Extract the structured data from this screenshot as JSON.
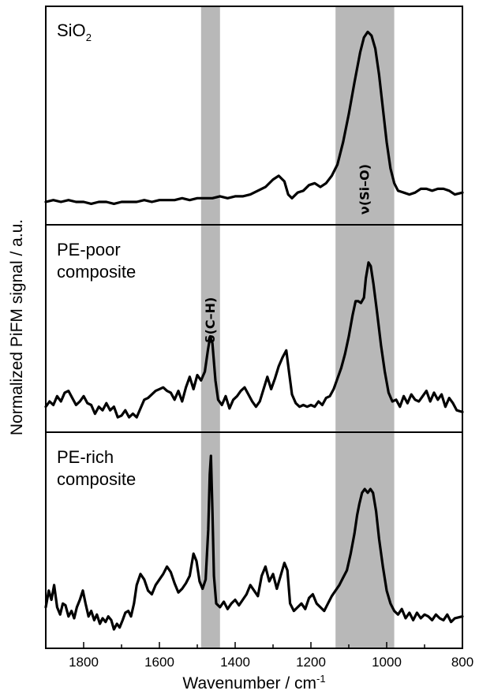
{
  "chart_data": {
    "type": "line",
    "xlabel": "Wavenumber / cm",
    "xlabel_sup": "-1",
    "ylabel": "Normalized PiFM signal / a.u.",
    "xlim": [
      1900,
      800
    ],
    "x_reversed": true,
    "x_ticks": [
      1800,
      1600,
      1400,
      1200,
      1000,
      800
    ],
    "y_ticks_shown": false,
    "bands": [
      {
        "label": "δ(C–H)",
        "from": 1490,
        "to": 1440,
        "color": "#b8b8b8"
      },
      {
        "label": "ν(Si–O)",
        "from": 1135,
        "to": 980,
        "color": "#b8b8b8"
      }
    ],
    "series": [
      {
        "name": "SiO",
        "name_sub": "2",
        "points": [
          [
            1900,
            0.08
          ],
          [
            1880,
            0.09
          ],
          [
            1860,
            0.08
          ],
          [
            1840,
            0.09
          ],
          [
            1820,
            0.08
          ],
          [
            1800,
            0.08
          ],
          [
            1780,
            0.07
          ],
          [
            1760,
            0.08
          ],
          [
            1740,
            0.08
          ],
          [
            1720,
            0.07
          ],
          [
            1700,
            0.08
          ],
          [
            1680,
            0.08
          ],
          [
            1660,
            0.08
          ],
          [
            1640,
            0.09
          ],
          [
            1620,
            0.08
          ],
          [
            1600,
            0.09
          ],
          [
            1580,
            0.09
          ],
          [
            1560,
            0.09
          ],
          [
            1540,
            0.1
          ],
          [
            1520,
            0.09
          ],
          [
            1500,
            0.1
          ],
          [
            1480,
            0.1
          ],
          [
            1460,
            0.1
          ],
          [
            1440,
            0.11
          ],
          [
            1420,
            0.1
          ],
          [
            1400,
            0.11
          ],
          [
            1380,
            0.11
          ],
          [
            1360,
            0.12
          ],
          [
            1340,
            0.14
          ],
          [
            1320,
            0.16
          ],
          [
            1300,
            0.2
          ],
          [
            1285,
            0.22
          ],
          [
            1270,
            0.19
          ],
          [
            1260,
            0.12
          ],
          [
            1250,
            0.1
          ],
          [
            1235,
            0.13
          ],
          [
            1220,
            0.14
          ],
          [
            1205,
            0.17
          ],
          [
            1190,
            0.18
          ],
          [
            1175,
            0.16
          ],
          [
            1160,
            0.18
          ],
          [
            1145,
            0.22
          ],
          [
            1130,
            0.28
          ],
          [
            1115,
            0.4
          ],
          [
            1100,
            0.55
          ],
          [
            1085,
            0.72
          ],
          [
            1070,
            0.88
          ],
          [
            1060,
            0.96
          ],
          [
            1050,
            0.99
          ],
          [
            1040,
            0.97
          ],
          [
            1030,
            0.9
          ],
          [
            1020,
            0.76
          ],
          [
            1010,
            0.58
          ],
          [
            1000,
            0.4
          ],
          [
            990,
            0.26
          ],
          [
            980,
            0.18
          ],
          [
            970,
            0.14
          ],
          [
            955,
            0.13
          ],
          [
            940,
            0.12
          ],
          [
            925,
            0.13
          ],
          [
            910,
            0.15
          ],
          [
            895,
            0.15
          ],
          [
            880,
            0.14
          ],
          [
            865,
            0.15
          ],
          [
            850,
            0.15
          ],
          [
            835,
            0.14
          ],
          [
            820,
            0.12
          ],
          [
            800,
            0.13
          ]
        ]
      },
      {
        "name": "PE-poor composite",
        "points": [
          [
            1900,
            0.1
          ],
          [
            1890,
            0.13
          ],
          [
            1880,
            0.11
          ],
          [
            1870,
            0.16
          ],
          [
            1860,
            0.13
          ],
          [
            1850,
            0.18
          ],
          [
            1840,
            0.19
          ],
          [
            1830,
            0.15
          ],
          [
            1820,
            0.11
          ],
          [
            1810,
            0.13
          ],
          [
            1800,
            0.16
          ],
          [
            1790,
            0.12
          ],
          [
            1780,
            0.11
          ],
          [
            1770,
            0.06
          ],
          [
            1760,
            0.1
          ],
          [
            1750,
            0.08
          ],
          [
            1740,
            0.12
          ],
          [
            1730,
            0.08
          ],
          [
            1720,
            0.1
          ],
          [
            1710,
            0.04
          ],
          [
            1700,
            0.05
          ],
          [
            1690,
            0.08
          ],
          [
            1680,
            0.04
          ],
          [
            1670,
            0.06
          ],
          [
            1660,
            0.04
          ],
          [
            1650,
            0.09
          ],
          [
            1640,
            0.14
          ],
          [
            1630,
            0.15
          ],
          [
            1620,
            0.17
          ],
          [
            1610,
            0.19
          ],
          [
            1600,
            0.2
          ],
          [
            1590,
            0.21
          ],
          [
            1580,
            0.19
          ],
          [
            1570,
            0.18
          ],
          [
            1560,
            0.14
          ],
          [
            1550,
            0.19
          ],
          [
            1540,
            0.13
          ],
          [
            1530,
            0.21
          ],
          [
            1520,
            0.27
          ],
          [
            1510,
            0.2
          ],
          [
            1500,
            0.28
          ],
          [
            1490,
            0.25
          ],
          [
            1480,
            0.3
          ],
          [
            1472,
            0.42
          ],
          [
            1466,
            0.5
          ],
          [
            1460,
            0.46
          ],
          [
            1452,
            0.25
          ],
          [
            1445,
            0.14
          ],
          [
            1435,
            0.11
          ],
          [
            1425,
            0.16
          ],
          [
            1415,
            0.09
          ],
          [
            1405,
            0.14
          ],
          [
            1395,
            0.16
          ],
          [
            1385,
            0.19
          ],
          [
            1375,
            0.21
          ],
          [
            1365,
            0.17
          ],
          [
            1355,
            0.13
          ],
          [
            1345,
            0.1
          ],
          [
            1335,
            0.13
          ],
          [
            1325,
            0.2
          ],
          [
            1315,
            0.27
          ],
          [
            1305,
            0.2
          ],
          [
            1295,
            0.26
          ],
          [
            1285,
            0.33
          ],
          [
            1275,
            0.38
          ],
          [
            1265,
            0.42
          ],
          [
            1258,
            0.3
          ],
          [
            1250,
            0.17
          ],
          [
            1240,
            0.12
          ],
          [
            1230,
            0.1
          ],
          [
            1220,
            0.11
          ],
          [
            1210,
            0.1
          ],
          [
            1200,
            0.11
          ],
          [
            1190,
            0.1
          ],
          [
            1180,
            0.13
          ],
          [
            1170,
            0.11
          ],
          [
            1160,
            0.15
          ],
          [
            1150,
            0.16
          ],
          [
            1140,
            0.2
          ],
          [
            1130,
            0.26
          ],
          [
            1120,
            0.32
          ],
          [
            1110,
            0.4
          ],
          [
            1100,
            0.5
          ],
          [
            1090,
            0.62
          ],
          [
            1082,
            0.7
          ],
          [
            1075,
            0.7
          ],
          [
            1068,
            0.69
          ],
          [
            1060,
            0.72
          ],
          [
            1055,
            0.83
          ],
          [
            1048,
            0.92
          ],
          [
            1042,
            0.9
          ],
          [
            1035,
            0.8
          ],
          [
            1025,
            0.63
          ],
          [
            1015,
            0.45
          ],
          [
            1005,
            0.3
          ],
          [
            995,
            0.18
          ],
          [
            985,
            0.13
          ],
          [
            975,
            0.14
          ],
          [
            965,
            0.1
          ],
          [
            955,
            0.16
          ],
          [
            945,
            0.12
          ],
          [
            935,
            0.17
          ],
          [
            925,
            0.14
          ],
          [
            915,
            0.13
          ],
          [
            905,
            0.16
          ],
          [
            895,
            0.19
          ],
          [
            885,
            0.13
          ],
          [
            875,
            0.18
          ],
          [
            865,
            0.14
          ],
          [
            855,
            0.17
          ],
          [
            845,
            0.1
          ],
          [
            835,
            0.15
          ],
          [
            825,
            0.12
          ],
          [
            815,
            0.08
          ],
          [
            800,
            0.07
          ]
        ]
      },
      {
        "name": "PE-rich composite",
        "points": [
          [
            1900,
            0.18
          ],
          [
            1892,
            0.27
          ],
          [
            1885,
            0.22
          ],
          [
            1878,
            0.3
          ],
          [
            1870,
            0.18
          ],
          [
            1862,
            0.14
          ],
          [
            1855,
            0.2
          ],
          [
            1848,
            0.19
          ],
          [
            1840,
            0.13
          ],
          [
            1832,
            0.16
          ],
          [
            1825,
            0.12
          ],
          [
            1818,
            0.18
          ],
          [
            1810,
            0.22
          ],
          [
            1802,
            0.27
          ],
          [
            1795,
            0.2
          ],
          [
            1787,
            0.13
          ],
          [
            1780,
            0.16
          ],
          [
            1772,
            0.11
          ],
          [
            1765,
            0.14
          ],
          [
            1757,
            0.09
          ],
          [
            1750,
            0.12
          ],
          [
            1742,
            0.1
          ],
          [
            1735,
            0.13
          ],
          [
            1727,
            0.11
          ],
          [
            1720,
            0.06
          ],
          [
            1712,
            0.09
          ],
          [
            1705,
            0.07
          ],
          [
            1697,
            0.11
          ],
          [
            1690,
            0.15
          ],
          [
            1682,
            0.16
          ],
          [
            1675,
            0.13
          ],
          [
            1667,
            0.2
          ],
          [
            1660,
            0.3
          ],
          [
            1650,
            0.36
          ],
          [
            1640,
            0.33
          ],
          [
            1630,
            0.27
          ],
          [
            1620,
            0.25
          ],
          [
            1610,
            0.3
          ],
          [
            1600,
            0.33
          ],
          [
            1590,
            0.36
          ],
          [
            1580,
            0.4
          ],
          [
            1570,
            0.37
          ],
          [
            1560,
            0.31
          ],
          [
            1550,
            0.26
          ],
          [
            1540,
            0.28
          ],
          [
            1530,
            0.31
          ],
          [
            1520,
            0.35
          ],
          [
            1510,
            0.47
          ],
          [
            1502,
            0.43
          ],
          [
            1494,
            0.32
          ],
          [
            1486,
            0.28
          ],
          [
            1478,
            0.33
          ],
          [
            1471,
            0.6
          ],
          [
            1467,
            0.9
          ],
          [
            1464,
            1.0
          ],
          [
            1460,
            0.7
          ],
          [
            1456,
            0.35
          ],
          [
            1450,
            0.2
          ],
          [
            1440,
            0.18
          ],
          [
            1430,
            0.21
          ],
          [
            1420,
            0.17
          ],
          [
            1410,
            0.2
          ],
          [
            1400,
            0.22
          ],
          [
            1390,
            0.19
          ],
          [
            1380,
            0.22
          ],
          [
            1370,
            0.25
          ],
          [
            1360,
            0.3
          ],
          [
            1350,
            0.27
          ],
          [
            1340,
            0.24
          ],
          [
            1330,
            0.35
          ],
          [
            1320,
            0.4
          ],
          [
            1310,
            0.32
          ],
          [
            1300,
            0.36
          ],
          [
            1290,
            0.28
          ],
          [
            1280,
            0.35
          ],
          [
            1270,
            0.42
          ],
          [
            1262,
            0.38
          ],
          [
            1255,
            0.2
          ],
          [
            1245,
            0.16
          ],
          [
            1235,
            0.18
          ],
          [
            1225,
            0.2
          ],
          [
            1215,
            0.17
          ],
          [
            1205,
            0.23
          ],
          [
            1195,
            0.25
          ],
          [
            1185,
            0.2
          ],
          [
            1175,
            0.18
          ],
          [
            1165,
            0.16
          ],
          [
            1155,
            0.2
          ],
          [
            1145,
            0.24
          ],
          [
            1135,
            0.27
          ],
          [
            1125,
            0.3
          ],
          [
            1115,
            0.34
          ],
          [
            1105,
            0.38
          ],
          [
            1095,
            0.47
          ],
          [
            1085,
            0.58
          ],
          [
            1078,
            0.68
          ],
          [
            1072,
            0.74
          ],
          [
            1065,
            0.8
          ],
          [
            1058,
            0.82
          ],
          [
            1050,
            0.8
          ],
          [
            1043,
            0.82
          ],
          [
            1036,
            0.8
          ],
          [
            1028,
            0.7
          ],
          [
            1020,
            0.55
          ],
          [
            1010,
            0.4
          ],
          [
            1000,
            0.27
          ],
          [
            990,
            0.2
          ],
          [
            980,
            0.16
          ],
          [
            970,
            0.14
          ],
          [
            960,
            0.17
          ],
          [
            950,
            0.12
          ],
          [
            940,
            0.15
          ],
          [
            930,
            0.11
          ],
          [
            920,
            0.15
          ],
          [
            910,
            0.12
          ],
          [
            900,
            0.14
          ],
          [
            890,
            0.13
          ],
          [
            880,
            0.11
          ],
          [
            870,
            0.14
          ],
          [
            860,
            0.12
          ],
          [
            850,
            0.11
          ],
          [
            840,
            0.14
          ],
          [
            830,
            0.1
          ],
          [
            820,
            0.12
          ],
          [
            800,
            0.13
          ]
        ]
      }
    ]
  }
}
